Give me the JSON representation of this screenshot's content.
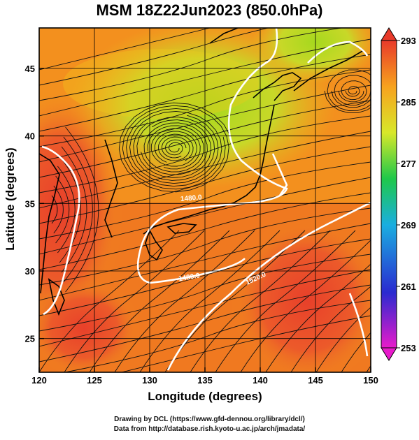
{
  "title": "MSM 18Z22Jun2023 (850.0hPa)",
  "axes": {
    "xlabel": "Longitude (degrees)",
    "ylabel": "Latitude  (degrees)",
    "xlim": [
      120,
      150
    ],
    "ylim": [
      22.5,
      48
    ],
    "xticks": [
      "120",
      "125",
      "130",
      "135",
      "140",
      "145",
      "150"
    ],
    "yticks": [
      "25",
      "30",
      "35",
      "40",
      "45"
    ]
  },
  "colorbar": {
    "ticks": [
      "293",
      "285",
      "277",
      "269",
      "261",
      "253"
    ],
    "range": [
      253,
      293
    ],
    "colors": [
      "#e81acb",
      "#2a2ad0",
      "#1aaee0",
      "#1ec84a",
      "#d8e82a",
      "#f7a21e",
      "#e83a2a"
    ]
  },
  "contours": {
    "color": "#ffffff",
    "labels": [
      "1480.0",
      "1480.0",
      "1520.0"
    ]
  },
  "credits": {
    "line1": "Drawing by DCL (https://www.gfd-dennou.org/library/dcl/)",
    "line2": "Data from http://database.rish.kyoto-u.ac.jp/arch/jmadata/"
  },
  "icons": {
    "colorbar_top_end": "triangle-up-icon",
    "colorbar_bottom_end": "triangle-down-icon"
  }
}
